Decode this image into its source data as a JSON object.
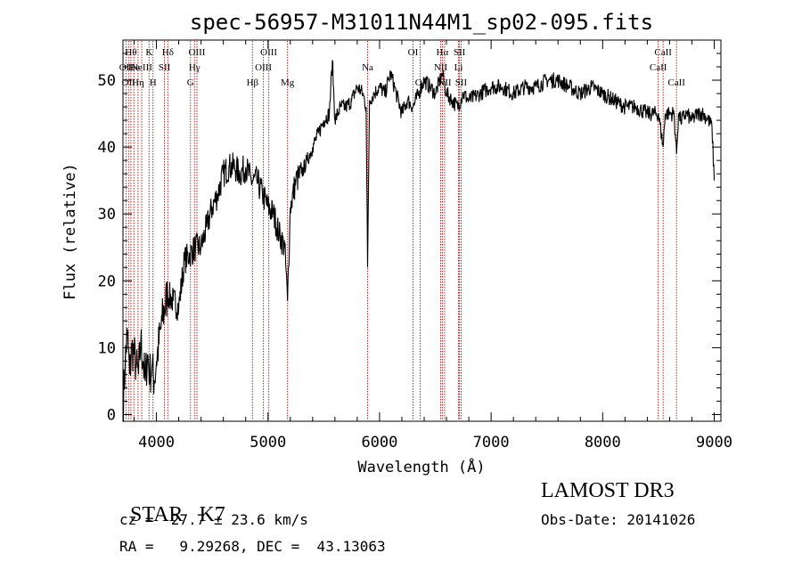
{
  "chart_data": {
    "type": "line",
    "title": "spec-56957-M31011N44M1_sp02-095.fits",
    "xlabel": "Wavelength (Å)",
    "ylabel": "Flux (relative)",
    "xlim": [
      3700,
      9060
    ],
    "ylim": [
      -1,
      56
    ],
    "xticks": [
      4000,
      5000,
      6000,
      7000,
      8000,
      9000
    ],
    "yticks": [
      0,
      10,
      20,
      30,
      40,
      50
    ],
    "grid": false,
    "colors": {
      "spectrum": "#000000",
      "line_markers": "#b22222"
    },
    "series": [
      {
        "x": [
          3700,
          3720,
          3740,
          3760,
          3780,
          3800,
          3820,
          3840,
          3860,
          3880,
          3900,
          3920,
          3940,
          3960,
          3980,
          4000,
          4050,
          4100,
          4150,
          4200,
          4250,
          4300,
          4350,
          4400,
          4450,
          4500,
          4550,
          4600,
          4650,
          4700,
          4750,
          4800,
          4850,
          4900,
          4950,
          5000,
          5050,
          5100,
          5150,
          5175,
          5200,
          5250,
          5300,
          5350,
          5400,
          5450,
          5500,
          5550,
          5577,
          5600,
          5650,
          5700,
          5750,
          5800,
          5850,
          5880,
          5893,
          5910,
          5950,
          6000,
          6050,
          6080,
          6100,
          6150,
          6200,
          6250,
          6300,
          6350,
          6400,
          6450,
          6500,
          6563,
          6600,
          6650,
          6700,
          6750,
          6800,
          6900,
          7000,
          7100,
          7200,
          7300,
          7400,
          7500,
          7600,
          7700,
          7800,
          7900,
          8000,
          8100,
          8200,
          8300,
          8400,
          8500,
          8542,
          8560,
          8600,
          8640,
          8662,
          8680,
          8700,
          8750,
          8800,
          8850,
          8900,
          8950,
          8980,
          9000
        ],
        "values": [
          1,
          8,
          12,
          6,
          10,
          9,
          7,
          6,
          11,
          8,
          5,
          9,
          6,
          7,
          5,
          8,
          14,
          18,
          17,
          16,
          23,
          24,
          25,
          25,
          28,
          31,
          33,
          36,
          37,
          37,
          36,
          37,
          35,
          35,
          33,
          31,
          30,
          27,
          25,
          17,
          31,
          35,
          36,
          38,
          40,
          42,
          44,
          45,
          53,
          44,
          46,
          46,
          47,
          49,
          48,
          46,
          22,
          47,
          48,
          49,
          48,
          50,
          51,
          48,
          45,
          47,
          46,
          48,
          50,
          49,
          48,
          51,
          48,
          47,
          46,
          48,
          47,
          48,
          49,
          49,
          48,
          49,
          49,
          50,
          50,
          49,
          48,
          49,
          48,
          47,
          46,
          46,
          45,
          45,
          40,
          45,
          45,
          45,
          39,
          45,
          44,
          45,
          44,
          45,
          45,
          44,
          43,
          35
        ]
      }
    ],
    "line_markers": [
      {
        "x": 3727,
        "label": "OII",
        "row": 2
      },
      {
        "x": 3750,
        "label": "OII",
        "row": 3
      },
      {
        "x": 3771,
        "label": "Hθ",
        "row": 1
      },
      {
        "x": 3798,
        "label": "He",
        "row": 2
      },
      {
        "x": 3835,
        "label": "Hη",
        "row": 3
      },
      {
        "x": 3868,
        "label": "NeIII",
        "row": 2
      },
      {
        "x": 3934,
        "label": "K",
        "row": 1
      },
      {
        "x": 3969,
        "label": "H",
        "row": 3
      },
      {
        "x": 4072,
        "label": "SII",
        "row": 2
      },
      {
        "x": 4102,
        "label": "Hδ",
        "row": 1
      },
      {
        "x": 4305,
        "label": "G",
        "row": 3
      },
      {
        "x": 4341,
        "label": "Hγ",
        "row": 2
      },
      {
        "x": 4363,
        "label": "OIII",
        "row": 1
      },
      {
        "x": 4861,
        "label": "Hβ",
        "row": 3
      },
      {
        "x": 4959,
        "label": "OIII",
        "row": 2
      },
      {
        "x": 5007,
        "label": "OIII",
        "row": 1
      },
      {
        "x": 5175,
        "label": "Mg",
        "row": 3
      },
      {
        "x": 5893,
        "label": "Na",
        "row": 2
      },
      {
        "x": 6300,
        "label": "OI",
        "row": 1
      },
      {
        "x": 6364,
        "label": "OI",
        "row": 3
      },
      {
        "x": 6548,
        "label": "NII",
        "row": 2
      },
      {
        "x": 6563,
        "label": "Hα",
        "row": 1
      },
      {
        "x": 6583,
        "label": "NII",
        "row": 3
      },
      {
        "x": 6708,
        "label": "Li",
        "row": 2
      },
      {
        "x": 6716,
        "label": "SII",
        "row": 1
      },
      {
        "x": 6731,
        "label": "SII",
        "row": 3
      },
      {
        "x": 8498,
        "label": "CaII",
        "row": 2
      },
      {
        "x": 8542,
        "label": "CaII",
        "row": 1
      },
      {
        "x": 8662,
        "label": "CaII",
        "row": 3
      }
    ]
  },
  "info": {
    "class": "STAR",
    "subclass": "K7",
    "survey": "LAMOST DR3",
    "cz": "cz = -27.7 ± 23.6 km/s",
    "obs_date": "Obs-Date: 20141026",
    "coords": "RA =   9.29268, DEC =  43.13063"
  }
}
